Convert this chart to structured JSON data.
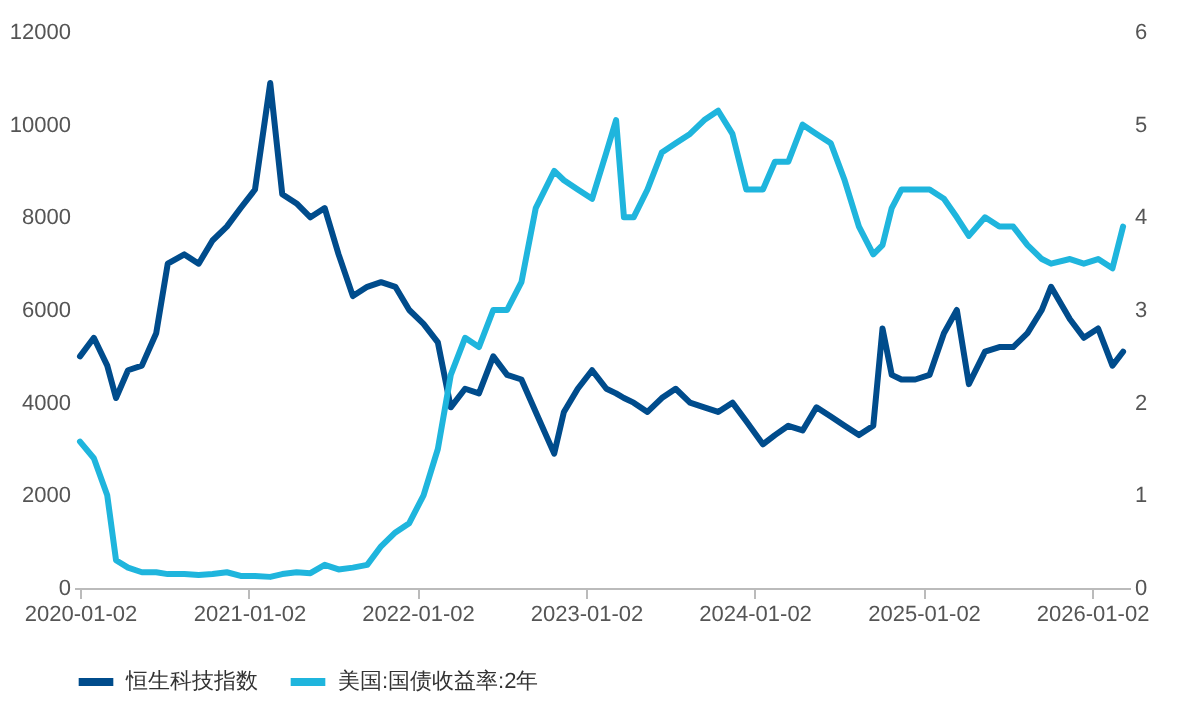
{
  "chart_data": {
    "type": "line",
    "x": [
      "2020-01-02",
      "2020-02-01",
      "2020-03-01",
      "2020-03-20",
      "2020-04-15",
      "2020-05-15",
      "2020-06-15",
      "2020-07-10",
      "2020-08-15",
      "2020-09-15",
      "2020-10-15",
      "2020-11-15",
      "2020-12-15",
      "2021-01-15",
      "2021-02-17",
      "2021-03-15",
      "2021-04-15",
      "2021-05-15",
      "2021-06-15",
      "2021-07-15",
      "2021-08-15",
      "2021-09-15",
      "2021-10-15",
      "2021-11-15",
      "2021-12-15",
      "2022-01-15",
      "2022-02-15",
      "2022-03-15",
      "2022-04-15",
      "2022-05-15",
      "2022-06-15",
      "2022-07-15",
      "2022-08-15",
      "2022-09-15",
      "2022-10-25",
      "2022-11-15",
      "2022-12-15",
      "2023-01-15",
      "2023-02-15",
      "2023-03-08",
      "2023-03-25",
      "2023-04-15",
      "2023-05-15",
      "2023-06-15",
      "2023-07-15",
      "2023-08-15",
      "2023-09-15",
      "2023-10-15",
      "2023-11-15",
      "2023-12-15",
      "2024-01-20",
      "2024-02-15",
      "2024-03-15",
      "2024-04-15",
      "2024-05-15",
      "2024-06-15",
      "2024-07-15",
      "2024-08-15",
      "2024-09-15",
      "2024-10-05",
      "2024-10-25",
      "2024-11-15",
      "2024-12-15",
      "2025-01-15",
      "2025-02-15",
      "2025-03-15",
      "2025-04-10",
      "2025-05-15",
      "2025-06-15",
      "2025-07-15",
      "2025-08-15",
      "2025-09-15",
      "2025-10-05",
      "2025-11-15",
      "2025-12-15",
      "2026-01-15",
      "2026-02-15",
      "2026-03-10"
    ],
    "xlim": [
      "2019-12-20",
      "2026-03-25"
    ],
    "xticks": [
      "2020-01-02",
      "2021-01-02",
      "2022-01-02",
      "2023-01-02",
      "2024-01-02",
      "2025-01-02",
      "2026-01-02"
    ],
    "ylim": [
      0,
      12000
    ],
    "yticks": [
      0,
      2000,
      4000,
      6000,
      8000,
      10000,
      12000
    ],
    "y2lim": [
      0,
      6
    ],
    "y2ticks": [
      0,
      1,
      2,
      3,
      4,
      5,
      6
    ],
    "legend": "bottom",
    "grid": false,
    "line_style": "solid",
    "series": [
      {
        "name": "恒生科技指数",
        "color": "#004c8c",
        "values": [
          5000,
          5400,
          4800,
          4100,
          4700,
          4800,
          5500,
          7000,
          7200,
          7000,
          7500,
          7800,
          8200,
          8600,
          10900,
          8500,
          8300,
          8000,
          8200,
          7200,
          6300,
          6500,
          6600,
          6500,
          6000,
          5700,
          5300,
          3900,
          4300,
          4200,
          5000,
          4600,
          4500,
          3800,
          2900,
          3800,
          4300,
          4700,
          4300,
          4200,
          4100,
          4000,
          3800,
          4100,
          4300,
          4000,
          3900,
          3800,
          4000,
          3600,
          3100,
          3300,
          3500,
          3400,
          3900,
          3700,
          3500,
          3300,
          3500,
          5600,
          4600,
          4500,
          4500,
          4600,
          5500,
          6000,
          4400,
          5100,
          5200,
          5200,
          5500,
          6000,
          6500,
          5800,
          5400,
          5600,
          4800,
          5100
        ]
      },
      {
        "name": "美国:国债收益率:2年",
        "color": "#1fb5dd",
        "axis": "y2",
        "values": [
          1.58,
          1.4,
          1.0,
          0.3,
          0.22,
          0.17,
          0.17,
          0.15,
          0.15,
          0.14,
          0.15,
          0.17,
          0.13,
          0.13,
          0.12,
          0.15,
          0.17,
          0.16,
          0.25,
          0.2,
          0.22,
          0.25,
          0.45,
          0.6,
          0.7,
          1.0,
          1.5,
          2.3,
          2.7,
          2.6,
          3.0,
          3.0,
          3.3,
          4.1,
          4.5,
          4.4,
          4.3,
          4.2,
          4.7,
          5.05,
          4.0,
          4.0,
          4.3,
          4.7,
          4.8,
          4.9,
          5.05,
          5.15,
          4.9,
          4.3,
          4.3,
          4.6,
          4.6,
          5.0,
          4.9,
          4.8,
          4.4,
          3.9,
          3.6,
          3.7,
          4.1,
          4.3,
          4.3,
          4.3,
          4.2,
          4.0,
          3.8,
          4.0,
          3.9,
          3.9,
          3.7,
          3.55,
          3.5,
          3.55,
          3.5,
          3.55,
          3.45,
          3.9
        ]
      }
    ]
  }
}
